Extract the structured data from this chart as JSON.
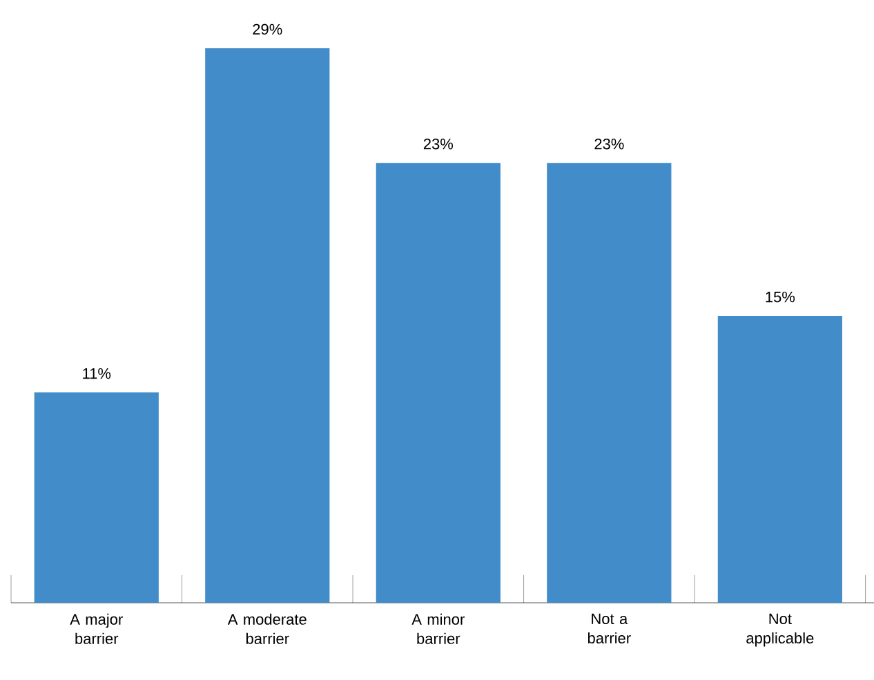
{
  "chart_data": {
    "type": "bar",
    "categories": [
      "A major barrier",
      "A moderate barrier",
      "A minor barrier",
      "Not a barrier",
      "Not applicable"
    ],
    "values": [
      11,
      29,
      23,
      23,
      15
    ],
    "value_labels": [
      "11%",
      "29%",
      "23%",
      "23%",
      "15%"
    ],
    "color": "#418cc9"
  }
}
